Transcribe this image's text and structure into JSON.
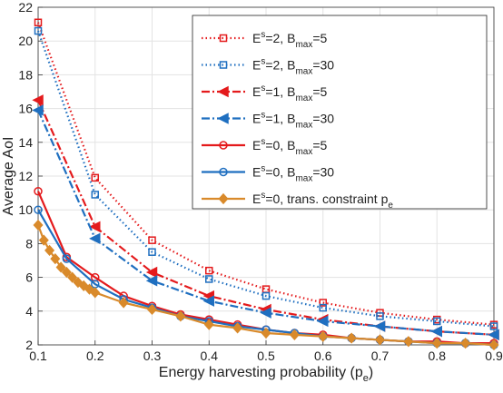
{
  "chart_data": {
    "type": "line",
    "title": "",
    "xlabel": "Energy harvesting probability (p",
    "xlabel_sub": "e",
    "xlabel_close": ")",
    "ylabel": "Average AoI",
    "xlim": [
      0.1,
      0.9
    ],
    "ylim": [
      2,
      22
    ],
    "xticks": [
      0.1,
      0.2,
      0.3,
      0.4,
      0.5,
      0.6,
      0.7,
      0.8,
      0.9
    ],
    "xtick_labels": [
      "0.1",
      "0.2",
      "0.3",
      "0.4",
      "0.5",
      "0.6",
      "0.7",
      "0.8",
      "0.9"
    ],
    "yticks": [
      2,
      4,
      6,
      8,
      10,
      12,
      14,
      16,
      18,
      20,
      22
    ],
    "ytick_labels": [
      "2",
      "4",
      "6",
      "8",
      "10",
      "12",
      "14",
      "16",
      "18",
      "20",
      "22"
    ],
    "grid": true,
    "legend_position": "top-right",
    "series": [
      {
        "legend": {
          "base": "E",
          "sup": "s",
          "mid": "=2, B",
          "sub": "max",
          "tail": "=5"
        },
        "color": "#e41a1c",
        "dash": "dotted",
        "marker": "square",
        "x": [
          0.1,
          0.2,
          0.3,
          0.4,
          0.5,
          0.6,
          0.7,
          0.8,
          0.9
        ],
        "y": [
          21.1,
          11.9,
          8.2,
          6.4,
          5.3,
          4.5,
          3.9,
          3.5,
          3.2
        ]
      },
      {
        "legend": {
          "base": "E",
          "sup": "s",
          "mid": "=2, B",
          "sub": "max",
          "tail": "=30"
        },
        "color": "#1f6fc0",
        "dash": "dotted",
        "marker": "square",
        "x": [
          0.1,
          0.2,
          0.3,
          0.4,
          0.5,
          0.6,
          0.7,
          0.8,
          0.9
        ],
        "y": [
          20.6,
          10.9,
          7.5,
          5.9,
          4.9,
          4.2,
          3.7,
          3.4,
          3.1
        ]
      },
      {
        "legend": {
          "base": "E",
          "sup": "s",
          "mid": "=1, B",
          "sub": "max",
          "tail": "=5"
        },
        "color": "#e41a1c",
        "dash": "dashdot",
        "marker": "triangle-left",
        "x": [
          0.1,
          0.2,
          0.3,
          0.4,
          0.5,
          0.6,
          0.7,
          0.8,
          0.9
        ],
        "y": [
          16.5,
          9.0,
          6.3,
          4.9,
          4.1,
          3.5,
          3.1,
          2.8,
          2.6
        ]
      },
      {
        "legend": {
          "base": "E",
          "sup": "s",
          "mid": "=1, B",
          "sub": "max",
          "tail": "=30"
        },
        "color": "#1f6fc0",
        "dash": "dashdot",
        "marker": "triangle-left",
        "x": [
          0.1,
          0.2,
          0.3,
          0.4,
          0.5,
          0.6,
          0.7,
          0.8,
          0.9
        ],
        "y": [
          15.9,
          8.3,
          5.8,
          4.6,
          3.9,
          3.4,
          3.1,
          2.8,
          2.6
        ]
      },
      {
        "legend": {
          "base": "E",
          "sup": "s",
          "mid": "=0, B",
          "sub": "max",
          "tail": "=5"
        },
        "color": "#e41a1c",
        "dash": "solid",
        "marker": "circle",
        "x": [
          0.1,
          0.15,
          0.2,
          0.25,
          0.3,
          0.35,
          0.4,
          0.45,
          0.5,
          0.55,
          0.6,
          0.65,
          0.7,
          0.75,
          0.8,
          0.85,
          0.9
        ],
        "y": [
          11.1,
          7.2,
          6.0,
          4.9,
          4.3,
          3.8,
          3.5,
          3.2,
          2.9,
          2.7,
          2.6,
          2.4,
          2.3,
          2.2,
          2.2,
          2.1,
          2.1
        ]
      },
      {
        "legend": {
          "base": "E",
          "sup": "s",
          "mid": "=0, B",
          "sub": "max",
          "tail": "=30"
        },
        "color": "#1f6fc0",
        "dash": "solid",
        "marker": "circle",
        "x": [
          0.1,
          0.15,
          0.2,
          0.25,
          0.3,
          0.35,
          0.4,
          0.45,
          0.5,
          0.55,
          0.6,
          0.65,
          0.7,
          0.75,
          0.8,
          0.85,
          0.9
        ],
        "y": [
          10.0,
          7.1,
          5.6,
          4.7,
          4.2,
          3.7,
          3.4,
          3.1,
          2.9,
          2.7,
          2.5,
          2.4,
          2.3,
          2.2,
          2.1,
          2.1,
          2.0
        ]
      },
      {
        "legend": {
          "base": "E",
          "sup": "s",
          "mid": "=0, trans. constraint p",
          "sub": "e",
          "tail": ""
        },
        "color": "#d98a2b",
        "dash": "solid",
        "marker": "diamond",
        "x": [
          0.1,
          0.11,
          0.12,
          0.13,
          0.14,
          0.15,
          0.16,
          0.17,
          0.18,
          0.19,
          0.2,
          0.25,
          0.3,
          0.35,
          0.4,
          0.45,
          0.5,
          0.55,
          0.6,
          0.65,
          0.7,
          0.75,
          0.8,
          0.85,
          0.9
        ],
        "y": [
          9.1,
          8.2,
          7.6,
          7.1,
          6.6,
          6.3,
          6.0,
          5.7,
          5.5,
          5.3,
          5.1,
          4.5,
          4.1,
          3.7,
          3.2,
          3.0,
          2.7,
          2.6,
          2.5,
          2.4,
          2.3,
          2.2,
          2.1,
          2.1,
          2.0
        ]
      }
    ]
  }
}
